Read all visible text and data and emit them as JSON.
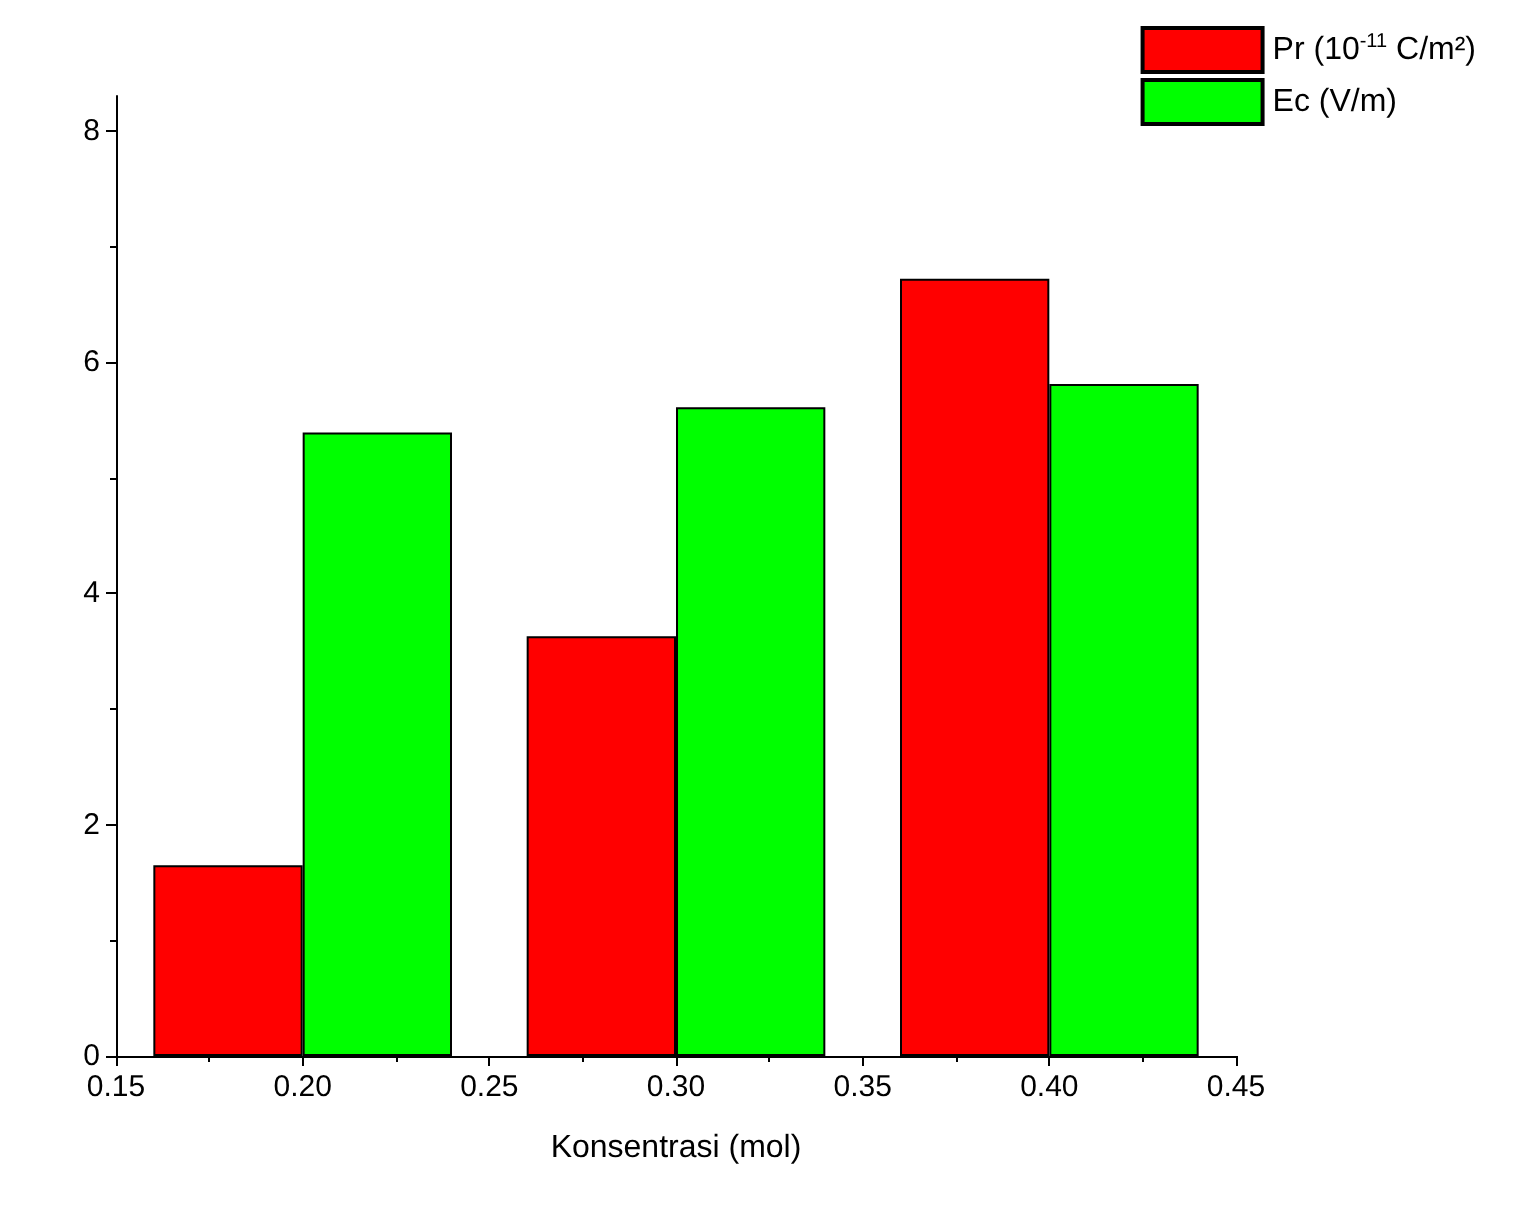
{
  "chart_data": {
    "type": "bar",
    "xlabel": "Konsentrasi (mol)",
    "x": [
      0.2,
      0.3,
      0.4
    ],
    "series": [
      {
        "name": "Pr (10$^{-11}$ C/m²)",
        "color": "#ff0000",
        "values": [
          1.65,
          3.63,
          6.72
        ]
      },
      {
        "name": "Ec (V/m)",
        "color": "#00ff00",
        "values": [
          5.39,
          5.61,
          5.81
        ]
      }
    ],
    "xlim": [
      0.15,
      0.45
    ],
    "xticks": [
      0.15,
      {
        "value": 0.2,
        "label": "0.20"
      },
      0.25,
      {
        "value": 0.3,
        "label": "0.30"
      },
      0.35,
      {
        "value": 0.4,
        "label": "0.40"
      },
      0.45
    ],
    "ylim": [
      0,
      8.3
    ],
    "yticks": [
      0,
      2,
      4,
      6,
      8
    ],
    "grid": false,
    "legend": "top right"
  }
}
